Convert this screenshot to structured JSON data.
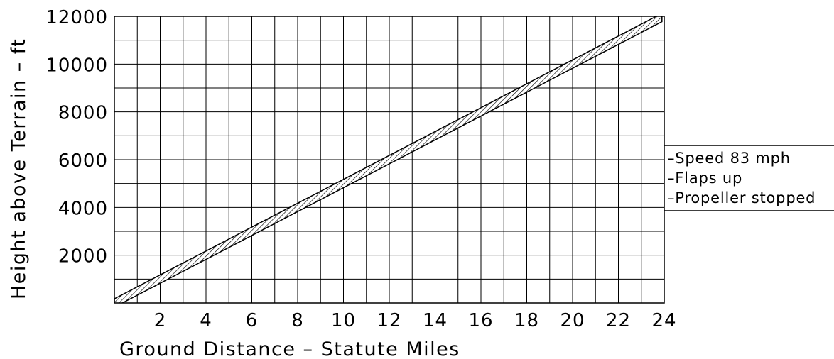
{
  "chart_data": {
    "type": "line",
    "title": "",
    "xlabel": "Ground Distance – Statute Miles",
    "ylabel": "Height above Terrain – ft",
    "xlim": [
      0,
      24
    ],
    "ylim": [
      0,
      12000
    ],
    "x_ticks": [
      2,
      4,
      6,
      8,
      10,
      12,
      14,
      16,
      18,
      20,
      22,
      24
    ],
    "y_ticks": [
      2000,
      4000,
      6000,
      8000,
      10000,
      12000
    ],
    "grid": true,
    "series": [
      {
        "x": [
          0,
          2,
          4,
          6,
          8,
          10,
          12,
          14,
          16,
          18,
          20,
          22,
          23.9
        ],
        "y": [
          0,
          1000,
          2000,
          3000,
          4000,
          5000,
          6000,
          7000,
          8000,
          9000,
          10000,
          11000,
          11950
        ],
        "band_width_ft": 350,
        "style": "hatched band"
      }
    ],
    "legend": [
      "–Speed 83 mph",
      "–Flaps up",
      "–Propeller stopped"
    ],
    "legend_position": "right"
  }
}
